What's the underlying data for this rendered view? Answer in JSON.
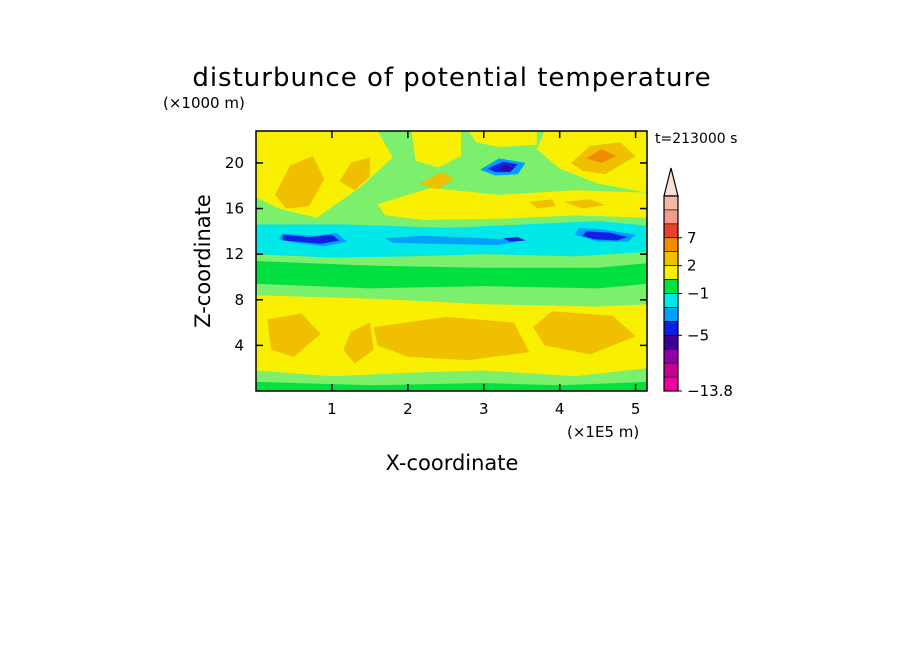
{
  "chart_data": {
    "type": "heatmap",
    "title": "disturbunce of potential temperature",
    "time_label": "t=213000 s",
    "xlabel": "X-coordinate",
    "ylabel": "Z-coordinate",
    "x_unit": "(×1E5 m)",
    "y_unit": "(×1000 m)",
    "xlim": [
      0,
      5.15
    ],
    "ylim": [
      0,
      22.8
    ],
    "x_ticks": [
      "1",
      "2",
      "3",
      "4",
      "5"
    ],
    "y_ticks": [
      "4",
      "8",
      "12",
      "16",
      "20"
    ],
    "colorbar": {
      "labels": [
        "7",
        "2",
        "−1",
        "−5",
        "−13.8"
      ],
      "colors": [
        "#f5b8a8",
        "#f29a8c",
        "#e8402a",
        "#f08c00",
        "#f0c000",
        "#f8f000",
        "#00e040",
        "#00e8e8",
        "#00a0ff",
        "#1020e0",
        "#400098",
        "#9000a8",
        "#c80090",
        "#f000a0"
      ]
    },
    "regions": [
      {
        "level": "light-green",
        "color": "#7cf06c",
        "polygon": [
          [
            0,
            0
          ],
          [
            5.15,
            0
          ],
          [
            5.15,
            22.8
          ],
          [
            0,
            22.8
          ]
        ]
      },
      {
        "level": "yellow",
        "color": "#f8f000",
        "polygon": [
          [
            0.0,
            8.4
          ],
          [
            1.5,
            8.1
          ],
          [
            3.0,
            7.6
          ],
          [
            4.5,
            7.4
          ],
          [
            5.15,
            7.6
          ],
          [
            5.15,
            2.0
          ],
          [
            4.2,
            1.3
          ],
          [
            3.0,
            1.8
          ],
          [
            2.0,
            1.6
          ],
          [
            1.0,
            1.3
          ],
          [
            0.0,
            1.8
          ]
        ]
      },
      {
        "level": "orange",
        "color": "#f0c000",
        "polygon": [
          [
            1.55,
            5.6
          ],
          [
            2.5,
            6.5
          ],
          [
            3.4,
            6.0
          ],
          [
            3.6,
            3.4
          ],
          [
            2.8,
            2.7
          ],
          [
            2.0,
            3.0
          ],
          [
            1.6,
            4.0
          ]
        ]
      },
      {
        "level": "orange",
        "color": "#f0c000",
        "polygon": [
          [
            3.9,
            7.0
          ],
          [
            4.7,
            6.6
          ],
          [
            5.0,
            4.8
          ],
          [
            4.4,
            3.2
          ],
          [
            3.8,
            4.0
          ],
          [
            3.65,
            5.6
          ]
        ]
      },
      {
        "level": "orange",
        "color": "#f0c000",
        "polygon": [
          [
            0.15,
            6.3
          ],
          [
            0.6,
            6.8
          ],
          [
            0.85,
            5.0
          ],
          [
            0.5,
            3.0
          ],
          [
            0.2,
            3.6
          ]
        ]
      },
      {
        "level": "orange",
        "color": "#f0c000",
        "polygon": [
          [
            1.25,
            5.2
          ],
          [
            1.5,
            6.0
          ],
          [
            1.55,
            3.6
          ],
          [
            1.3,
            2.4
          ],
          [
            1.15,
            3.6
          ]
        ]
      },
      {
        "level": "green",
        "color": "#00e040",
        "polygon": [
          [
            0.0,
            11.4
          ],
          [
            1.5,
            11.0
          ],
          [
            3.0,
            10.8
          ],
          [
            4.5,
            10.8
          ],
          [
            5.15,
            11.2
          ],
          [
            5.15,
            9.4
          ],
          [
            4.5,
            9.0
          ],
          [
            3.0,
            9.2
          ],
          [
            1.5,
            9.0
          ],
          [
            0.0,
            9.4
          ]
        ]
      },
      {
        "level": "green",
        "color": "#00e040",
        "polygon": [
          [
            0.0,
            0.0
          ],
          [
            5.15,
            0.0
          ],
          [
            5.15,
            0.8
          ],
          [
            4.0,
            0.5
          ],
          [
            3.0,
            0.7
          ],
          [
            1.5,
            0.5
          ],
          [
            0.0,
            0.8
          ]
        ]
      },
      {
        "level": "cyan",
        "color": "#00e8e8",
        "polygon": [
          [
            0.0,
            14.6
          ],
          [
            1.2,
            14.6
          ],
          [
            2.5,
            14.3
          ],
          [
            3.5,
            14.6
          ],
          [
            4.5,
            14.9
          ],
          [
            5.15,
            14.5
          ],
          [
            5.15,
            12.2
          ],
          [
            4.2,
            11.8
          ],
          [
            3.0,
            12.0
          ],
          [
            2.0,
            11.8
          ],
          [
            1.0,
            11.7
          ],
          [
            0.0,
            12.0
          ]
        ]
      },
      {
        "level": "blue",
        "color": "#00a0ff",
        "polygon": [
          [
            0.35,
            13.8
          ],
          [
            0.8,
            13.6
          ],
          [
            1.05,
            13.9
          ],
          [
            1.2,
            13.1
          ],
          [
            0.9,
            12.7
          ],
          [
            0.5,
            13.0
          ],
          [
            0.3,
            13.3
          ]
        ]
      },
      {
        "level": "blue",
        "color": "#00a0ff",
        "polygon": [
          [
            1.7,
            13.4
          ],
          [
            2.2,
            13.6
          ],
          [
            3.0,
            13.4
          ],
          [
            3.5,
            13.2
          ],
          [
            3.2,
            12.8
          ],
          [
            2.4,
            12.9
          ],
          [
            1.8,
            13.0
          ]
        ]
      },
      {
        "level": "blue",
        "color": "#00a0ff",
        "polygon": [
          [
            4.25,
            14.3
          ],
          [
            4.55,
            14.2
          ],
          [
            5.0,
            13.7
          ],
          [
            4.9,
            13.1
          ],
          [
            4.5,
            13.1
          ],
          [
            4.2,
            13.7
          ]
        ]
      },
      {
        "level": "navy",
        "color": "#1020e0",
        "polygon": [
          [
            0.35,
            13.7
          ],
          [
            0.7,
            13.5
          ],
          [
            1.0,
            13.7
          ],
          [
            1.1,
            13.2
          ],
          [
            0.85,
            12.9
          ],
          [
            0.55,
            13.1
          ],
          [
            0.35,
            13.2
          ]
        ]
      },
      {
        "level": "navy",
        "color": "#1020e0",
        "polygon": [
          [
            4.35,
            14.0
          ],
          [
            4.65,
            13.9
          ],
          [
            4.9,
            13.5
          ],
          [
            4.75,
            13.2
          ],
          [
            4.45,
            13.3
          ],
          [
            4.3,
            13.6
          ]
        ]
      },
      {
        "level": "navy",
        "color": "#1020e0",
        "polygon": [
          [
            3.25,
            13.4
          ],
          [
            3.45,
            13.5
          ],
          [
            3.55,
            13.2
          ],
          [
            3.35,
            13.1
          ]
        ]
      },
      {
        "level": "yellow",
        "color": "#f8f000",
        "polygon": [
          [
            0.0,
            22.8
          ],
          [
            1.6,
            22.8
          ],
          [
            1.8,
            20.5
          ],
          [
            1.4,
            18.0
          ],
          [
            0.8,
            15.2
          ],
          [
            0.3,
            16.0
          ],
          [
            0.0,
            17.0
          ]
        ]
      },
      {
        "level": "yellow",
        "color": "#f8f000",
        "polygon": [
          [
            1.6,
            16.4
          ],
          [
            2.3,
            17.8
          ],
          [
            3.2,
            17.2
          ],
          [
            4.2,
            17.6
          ],
          [
            5.15,
            17.4
          ],
          [
            5.15,
            15.2
          ],
          [
            4.2,
            15.4
          ],
          [
            3.2,
            15.1
          ],
          [
            2.2,
            15.0
          ],
          [
            1.7,
            15.4
          ]
        ]
      },
      {
        "level": "yellow",
        "color": "#f8f000",
        "polygon": [
          [
            2.05,
            22.8
          ],
          [
            2.7,
            22.8
          ],
          [
            2.7,
            20.6
          ],
          [
            2.4,
            19.6
          ],
          [
            2.1,
            20.2
          ]
        ]
      },
      {
        "level": "yellow",
        "color": "#f8f000",
        "polygon": [
          [
            3.8,
            22.8
          ],
          [
            5.15,
            22.8
          ],
          [
            5.15,
            17.4
          ],
          [
            4.5,
            18.2
          ],
          [
            4.0,
            19.5
          ],
          [
            3.7,
            21.2
          ]
        ]
      },
      {
        "level": "yellow",
        "color": "#f8f000",
        "polygon": [
          [
            2.8,
            22.8
          ],
          [
            3.7,
            22.8
          ],
          [
            3.7,
            21.6
          ],
          [
            3.2,
            21.4
          ],
          [
            2.9,
            21.8
          ]
        ]
      },
      {
        "level": "orange",
        "color": "#f0c000",
        "polygon": [
          [
            0.25,
            17.2
          ],
          [
            0.45,
            19.8
          ],
          [
            0.75,
            20.6
          ],
          [
            0.9,
            18.6
          ],
          [
            0.7,
            16.2
          ],
          [
            0.4,
            16.0
          ]
        ]
      },
      {
        "level": "orange",
        "color": "#f0c000",
        "polygon": [
          [
            1.1,
            18.4
          ],
          [
            1.25,
            20.0
          ],
          [
            1.5,
            20.5
          ],
          [
            1.5,
            18.8
          ],
          [
            1.3,
            17.6
          ]
        ]
      },
      {
        "level": "orange",
        "color": "#f0c000",
        "polygon": [
          [
            2.15,
            18.2
          ],
          [
            2.45,
            19.2
          ],
          [
            2.6,
            18.6
          ],
          [
            2.4,
            17.7
          ]
        ]
      },
      {
        "level": "orange",
        "color": "#f0c000",
        "polygon": [
          [
            4.15,
            20.0
          ],
          [
            4.4,
            21.5
          ],
          [
            4.8,
            21.8
          ],
          [
            5.0,
            20.6
          ],
          [
            4.6,
            19.0
          ],
          [
            4.3,
            19.3
          ]
        ]
      },
      {
        "level": "orange",
        "color": "#f0c000",
        "polygon": [
          [
            4.05,
            16.6
          ],
          [
            4.4,
            16.8
          ],
          [
            4.6,
            16.3
          ],
          [
            4.3,
            16.0
          ]
        ]
      },
      {
        "level": "orange",
        "color": "#f0c000",
        "polygon": [
          [
            3.6,
            16.6
          ],
          [
            3.9,
            16.8
          ],
          [
            3.95,
            16.2
          ],
          [
            3.7,
            16.0
          ]
        ]
      },
      {
        "level": "dark-orange",
        "color": "#f08c00",
        "polygon": [
          [
            4.35,
            20.4
          ],
          [
            4.55,
            21.2
          ],
          [
            4.75,
            20.6
          ],
          [
            4.55,
            20.0
          ]
        ]
      },
      {
        "level": "blue",
        "color": "#00a0ff",
        "polygon": [
          [
            2.95,
            19.4
          ],
          [
            3.2,
            20.4
          ],
          [
            3.55,
            20.0
          ],
          [
            3.45,
            19.0
          ],
          [
            3.15,
            18.9
          ]
        ]
      },
      {
        "level": "navy",
        "color": "#1020e0",
        "polygon": [
          [
            3.05,
            19.5
          ],
          [
            3.25,
            20.1
          ],
          [
            3.45,
            19.9
          ],
          [
            3.35,
            19.2
          ],
          [
            3.15,
            19.2
          ]
        ]
      },
      {
        "level": "purple",
        "color": "#400098",
        "polygon": [
          [
            3.2,
            19.4
          ],
          [
            3.3,
            19.8
          ],
          [
            3.4,
            19.5
          ],
          [
            3.3,
            19.3
          ]
        ]
      }
    ]
  }
}
